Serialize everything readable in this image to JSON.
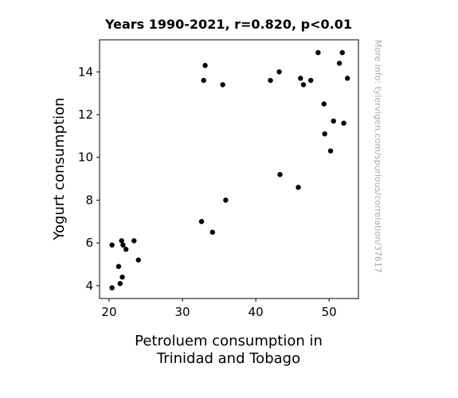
{
  "chart_data": {
    "type": "scatter",
    "title": "Years 1990-2021, r=0.820, p<0.01",
    "xlabel": [
      "Petroluem consumption in",
      "Trinidad and Tobago"
    ],
    "ylabel": "Yogurt consumption",
    "side_note": "More info: tylervigen.com/spurious/correlation/37617",
    "xlim": [
      18.7,
      54.0
    ],
    "ylim": [
      3.4,
      15.5
    ],
    "xticks": [
      20,
      30,
      40,
      50
    ],
    "yticks": [
      4,
      6,
      8,
      10,
      12,
      14
    ],
    "grid": false,
    "point_color": "#000000",
    "points": [
      {
        "x": 20.4,
        "y": 3.9
      },
      {
        "x": 21.5,
        "y": 4.1
      },
      {
        "x": 21.8,
        "y": 4.4
      },
      {
        "x": 21.3,
        "y": 4.9
      },
      {
        "x": 24.0,
        "y": 5.2
      },
      {
        "x": 22.3,
        "y": 5.7
      },
      {
        "x": 21.9,
        "y": 5.9
      },
      {
        "x": 20.4,
        "y": 5.9
      },
      {
        "x": 21.7,
        "y": 6.1
      },
      {
        "x": 23.4,
        "y": 6.1
      },
      {
        "x": 34.1,
        "y": 6.5
      },
      {
        "x": 32.6,
        "y": 7.0
      },
      {
        "x": 35.9,
        "y": 8.0
      },
      {
        "x": 45.8,
        "y": 8.6
      },
      {
        "x": 43.3,
        "y": 9.2
      },
      {
        "x": 50.2,
        "y": 10.3
      },
      {
        "x": 49.4,
        "y": 11.1
      },
      {
        "x": 52.0,
        "y": 11.6
      },
      {
        "x": 50.6,
        "y": 11.7
      },
      {
        "x": 49.3,
        "y": 12.5
      },
      {
        "x": 35.5,
        "y": 13.4
      },
      {
        "x": 46.5,
        "y": 13.4
      },
      {
        "x": 32.9,
        "y": 13.6
      },
      {
        "x": 42.0,
        "y": 13.6
      },
      {
        "x": 47.5,
        "y": 13.6
      },
      {
        "x": 46.1,
        "y": 13.7
      },
      {
        "x": 52.5,
        "y": 13.7
      },
      {
        "x": 43.2,
        "y": 14.0
      },
      {
        "x": 33.1,
        "y": 14.3
      },
      {
        "x": 51.4,
        "y": 14.4
      },
      {
        "x": 48.5,
        "y": 14.9
      },
      {
        "x": 51.8,
        "y": 14.9
      }
    ]
  }
}
